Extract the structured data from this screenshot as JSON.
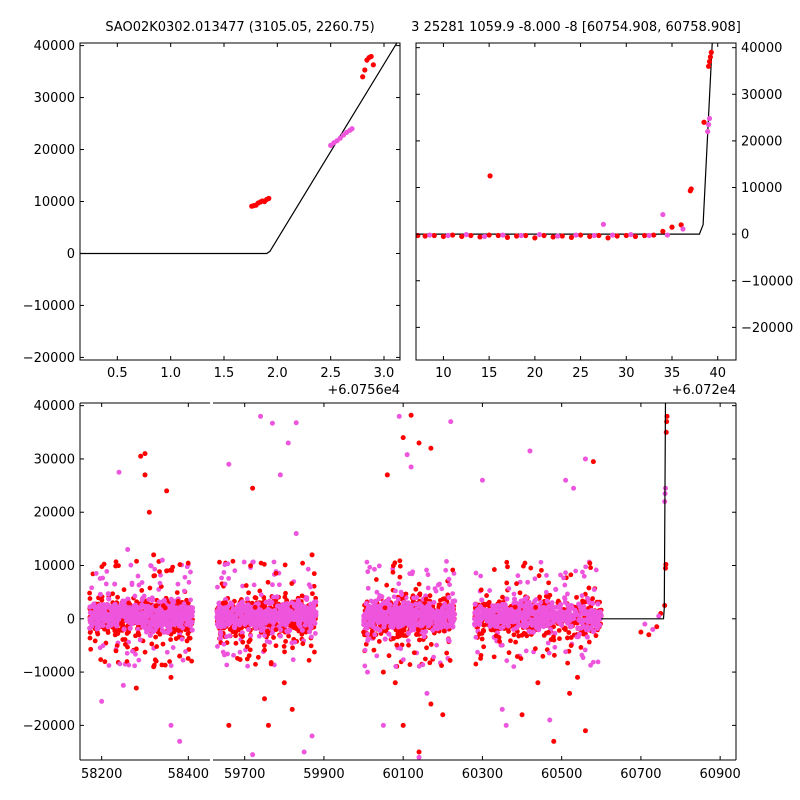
{
  "colors": {
    "red": "#ff0000",
    "magenta": "#ee55dd",
    "line": "#000000"
  },
  "chart_data": [
    {
      "type": "scatter",
      "title": "SAO02K0302.013477 (3105.05, 2260.75)",
      "xlabel": "",
      "ylabel": "",
      "xlim": [
        0.15,
        3.15
      ],
      "ylim": [
        -20500,
        40500
      ],
      "x_offset_label": "+6.0756e4",
      "xticks": [
        0.5,
        1.0,
        1.5,
        2.0,
        2.5,
        3.0
      ],
      "xtick_labels": [
        "0.5",
        "1.0",
        "1.5",
        "2.0",
        "2.5",
        "3.0"
      ],
      "yticks": [
        -20000,
        -10000,
        0,
        10000,
        20000,
        30000,
        40000
      ],
      "ytick_labels": [
        "−20000",
        "−10000",
        "0",
        "10000",
        "20000",
        "30000",
        "40000"
      ],
      "ytick_side": "left",
      "model_line": [
        [
          0.15,
          0
        ],
        [
          1.9,
          0
        ],
        [
          1.93,
          400
        ],
        [
          3.15,
          41500
        ]
      ],
      "series": [
        {
          "color": "red",
          "points": [
            [
              1.76,
              9100
            ],
            [
              1.78,
              9200
            ],
            [
              1.8,
              9300
            ],
            [
              1.82,
              9700
            ],
            [
              1.84,
              9900
            ],
            [
              1.86,
              10100
            ],
            [
              1.88,
              10000
            ],
            [
              1.9,
              10400
            ],
            [
              1.92,
              10600
            ],
            [
              2.8,
              34000
            ],
            [
              2.82,
              35300
            ],
            [
              2.84,
              37200
            ],
            [
              2.86,
              37700
            ],
            [
              2.88,
              37900
            ],
            [
              2.9,
              36300
            ]
          ]
        },
        {
          "color": "magenta",
          "points": [
            [
              2.5,
              20800
            ],
            [
              2.53,
              21300
            ],
            [
              2.56,
              21700
            ],
            [
              2.59,
              22200
            ],
            [
              2.62,
              22800
            ],
            [
              2.65,
              23300
            ],
            [
              2.68,
              23700
            ],
            [
              2.7,
              24000
            ]
          ]
        }
      ]
    },
    {
      "type": "scatter",
      "title": "3 25281 1059.9 -8.000 -8 [60754.908, 60758.908]",
      "xlabel": "",
      "ylabel": "",
      "xlim": [
        7,
        42
      ],
      "ylim": [
        -27000,
        41000
      ],
      "x_offset_label": "+6.072e4",
      "xticks": [
        10,
        15,
        20,
        25,
        30,
        35,
        40
      ],
      "xtick_labels": [
        "10",
        "15",
        "20",
        "25",
        "30",
        "35",
        "40"
      ],
      "yticks": [
        -20000,
        -10000,
        0,
        10000,
        20000,
        30000,
        40000
      ],
      "ytick_labels": [
        "−20000",
        "−10000",
        "0",
        "10000",
        "20000",
        "30000",
        "40000"
      ],
      "ytick_side": "right",
      "model_line": [
        [
          7,
          0
        ],
        [
          38,
          0
        ],
        [
          38.4,
          2000
        ],
        [
          39.4,
          41000
        ]
      ],
      "series": [
        {
          "color": "red",
          "points": [
            [
              7.2,
              -300
            ],
            [
              8,
              -400
            ],
            [
              9,
              -300
            ],
            [
              10,
              -500
            ],
            [
              11,
              -200
            ],
            [
              12,
              -500
            ],
            [
              13,
              -300
            ],
            [
              14,
              -600
            ],
            [
              15,
              -200
            ],
            [
              15.1,
              12500
            ],
            [
              16,
              -300
            ],
            [
              17,
              -700
            ],
            [
              18,
              -400
            ],
            [
              19,
              -300
            ],
            [
              20,
              -800
            ],
            [
              21,
              -300
            ],
            [
              22,
              -600
            ],
            [
              23,
              -400
            ],
            [
              24,
              -700
            ],
            [
              25,
              -200
            ],
            [
              26,
              -500
            ],
            [
              27,
              -300
            ],
            [
              28,
              -800
            ],
            [
              29,
              -400
            ],
            [
              30,
              -300
            ],
            [
              31,
              -500
            ],
            [
              32,
              -300
            ],
            [
              33,
              -200
            ],
            [
              34,
              600
            ],
            [
              35,
              1500
            ],
            [
              36,
              2000
            ],
            [
              37,
              9300
            ],
            [
              37.1,
              9700
            ],
            [
              38.5,
              24000
            ],
            [
              39,
              36000
            ],
            [
              39.1,
              37000
            ],
            [
              39.2,
              38000
            ],
            [
              39.3,
              39000
            ]
          ]
        },
        {
          "color": "magenta",
          "points": [
            [
              8.5,
              -200
            ],
            [
              10.5,
              -300
            ],
            [
              12.5,
              -100
            ],
            [
              14.5,
              -500
            ],
            [
              16.5,
              -200
            ],
            [
              18.5,
              -300
            ],
            [
              20.5,
              -100
            ],
            [
              22.5,
              -400
            ],
            [
              24.5,
              -200
            ],
            [
              26.5,
              -300
            ],
            [
              27.5,
              2100
            ],
            [
              28.5,
              -200
            ],
            [
              30.5,
              -100
            ],
            [
              32.5,
              -300
            ],
            [
              34,
              4200
            ],
            [
              34.5,
              -200
            ],
            [
              36.2,
              1100
            ],
            [
              38.9,
              22000
            ],
            [
              39,
              23500
            ],
            [
              39.1,
              24800
            ]
          ]
        }
      ]
    },
    {
      "type": "scatter",
      "title": "",
      "xlabel": "",
      "ylabel": "",
      "ylim": [
        -26500,
        40500
      ],
      "xtick_labels": [
        "58200",
        "58400",
        "59700",
        "59900",
        "60100",
        "60300",
        "60500",
        "60700",
        "60900"
      ],
      "yticks": [
        -20000,
        -10000,
        0,
        10000,
        20000,
        30000,
        40000
      ],
      "ytick_labels": [
        "−20000",
        "−10000",
        "0",
        "10000",
        "20000",
        "30000",
        "40000"
      ],
      "ytick_side": "left",
      "x_segments": [
        {
          "xlim": [
            58150,
            58450
          ],
          "xticks": [
            58200,
            58400
          ]
        },
        {
          "xlim": [
            59620,
            60940
          ],
          "xticks": [
            59700,
            59900,
            60100,
            60300,
            60500,
            60700,
            60900
          ]
        }
      ],
      "season_clusters": [
        {
          "x_range": [
            58172,
            58410
          ],
          "outliers_red": [
            [
              58300,
              31000
            ],
            [
              58290,
              30500
            ],
            [
              58350,
              24000
            ],
            [
              58300,
              27000
            ],
            [
              58310,
              20000
            ],
            [
              58320,
              -9000
            ],
            [
              58280,
              -13000
            ],
            [
              58360,
              -11000
            ],
            [
              58380,
              -7000
            ],
            [
              58350,
              9000
            ],
            [
              58320,
              12000
            ]
          ],
          "outliers_mag": [
            [
              58240,
              27500
            ],
            [
              58380,
              -23000
            ],
            [
              58360,
              -20000
            ],
            [
              58260,
              13000
            ],
            [
              58200,
              -15500
            ],
            [
              58250,
              -12500
            ],
            [
              58340,
              11000
            ],
            [
              58230,
              6500
            ]
          ]
        },
        {
          "x_range": [
            59630,
            59880
          ],
          "outliers_red": [
            [
              59720,
              24500
            ],
            [
              59760,
              -20000
            ],
            [
              59820,
              -17000
            ],
            [
              59750,
              -15000
            ],
            [
              59660,
              -20000
            ],
            [
              59870,
              12000
            ],
            [
              59800,
              -12000
            ]
          ],
          "outliers_mag": [
            [
              59740,
              38000
            ],
            [
              59660,
              29000
            ],
            [
              59790,
              27000
            ],
            [
              59810,
              33000
            ],
            [
              59830,
              36800
            ],
            [
              59850,
              -25000
            ],
            [
              59720,
              -25500
            ],
            [
              59770,
              36700
            ],
            [
              59830,
              16000
            ],
            [
              59870,
              -22000
            ]
          ]
        },
        {
          "x_range": [
            60000,
            60230
          ],
          "outliers_red": [
            [
              60120,
              38200
            ],
            [
              60100,
              34000
            ],
            [
              60140,
              33000
            ],
            [
              60170,
              32000
            ],
            [
              60060,
              27000
            ],
            [
              60140,
              -25000
            ],
            [
              60100,
              -20000
            ],
            [
              60170,
              -16000
            ],
            [
              60200,
              -18000
            ],
            [
              60080,
              -12000
            ],
            [
              60050,
              -10000
            ]
          ],
          "outliers_mag": [
            [
              60090,
              38000
            ],
            [
              60110,
              30800
            ],
            [
              60120,
              28500
            ],
            [
              60220,
              37000
            ],
            [
              60140,
              -26000
            ],
            [
              60050,
              -20000
            ],
            [
              60160,
              -14000
            ],
            [
              60010,
              -10000
            ]
          ]
        },
        {
          "x_range": [
            60280,
            60600
          ],
          "outliers_red": [
            [
              60400,
              -18000
            ],
            [
              60480,
              -23000
            ],
            [
              60580,
              29500
            ],
            [
              60560,
              -21000
            ],
            [
              60520,
              -14000
            ],
            [
              60440,
              -12000
            ],
            [
              60540,
              -11000
            ]
          ],
          "outliers_mag": [
            [
              60420,
              31500
            ],
            [
              60510,
              26000
            ],
            [
              60530,
              24500
            ],
            [
              60560,
              30000
            ],
            [
              60360,
              -20000
            ],
            [
              60300,
              26000
            ],
            [
              60470,
              -19000
            ],
            [
              60350,
              -17000
            ]
          ]
        }
      ],
      "late_points_red": [
        [
          60700,
          -2500
        ],
        [
          60720,
          -3000
        ],
        [
          60740,
          -1500
        ],
        [
          60750,
          1000
        ],
        [
          60760,
          2500
        ],
        [
          60762,
          9500
        ],
        [
          60763,
          10200
        ],
        [
          60764,
          35000
        ],
        [
          60765,
          37000
        ],
        [
          60766,
          38000
        ]
      ],
      "late_points_mag": [
        [
          60710,
          -1000
        ],
        [
          60730,
          -2000
        ],
        [
          60745,
          500
        ],
        [
          60760,
          22000
        ],
        [
          60761,
          23500
        ],
        [
          60762,
          24500
        ]
      ],
      "model_line": [
        [
          60600,
          0
        ],
        [
          60757,
          0
        ],
        [
          60759,
          2000
        ],
        [
          60762,
          40500
        ]
      ]
    }
  ]
}
